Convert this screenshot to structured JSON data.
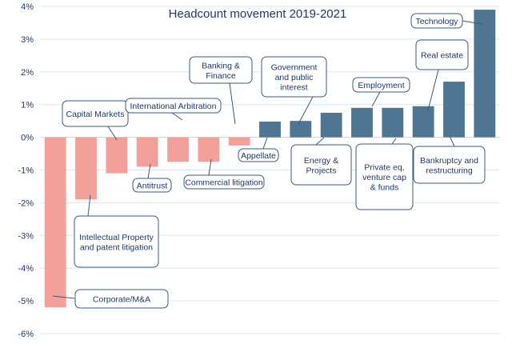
{
  "chart_data": {
    "type": "bar",
    "title": "Headcount movement 2019-2021",
    "xlabel": "",
    "ylabel": "",
    "ylim": [
      -6,
      4
    ],
    "yticks": [
      4,
      3,
      2,
      1,
      0,
      -1,
      -2,
      -3,
      -4,
      -5,
      -6
    ],
    "ytick_labels": [
      "4%",
      "3%",
      "2%",
      "1%",
      "0%",
      "-1%",
      "-2%",
      "-3%",
      "-4%",
      "-5%",
      "-6%"
    ],
    "grid": true,
    "legend": "none",
    "categories": [
      "Corporate/M&A",
      "Intellectual Property and patent litigation",
      "Capital Markets",
      "Antitrust",
      "International Arbitration",
      "Commercial litigation",
      "Banking & Finance",
      "Appellate",
      "Government and public interest",
      "Energy & Projects",
      "Employment",
      "Private eq, venture cap & funds",
      "Real estate",
      "Bankruptcy and restructuring",
      "Technology"
    ],
    "values": [
      -5.2,
      -1.9,
      -1.1,
      -0.9,
      -0.75,
      -0.75,
      -0.25,
      0.48,
      0.5,
      0.75,
      0.9,
      0.9,
      0.95,
      1.7,
      3.9
    ],
    "colors": {
      "negative": "#f4a09a",
      "positive": "#4e7591",
      "axis_text": "#1f3864",
      "callout_border": "#3c5a78"
    }
  }
}
